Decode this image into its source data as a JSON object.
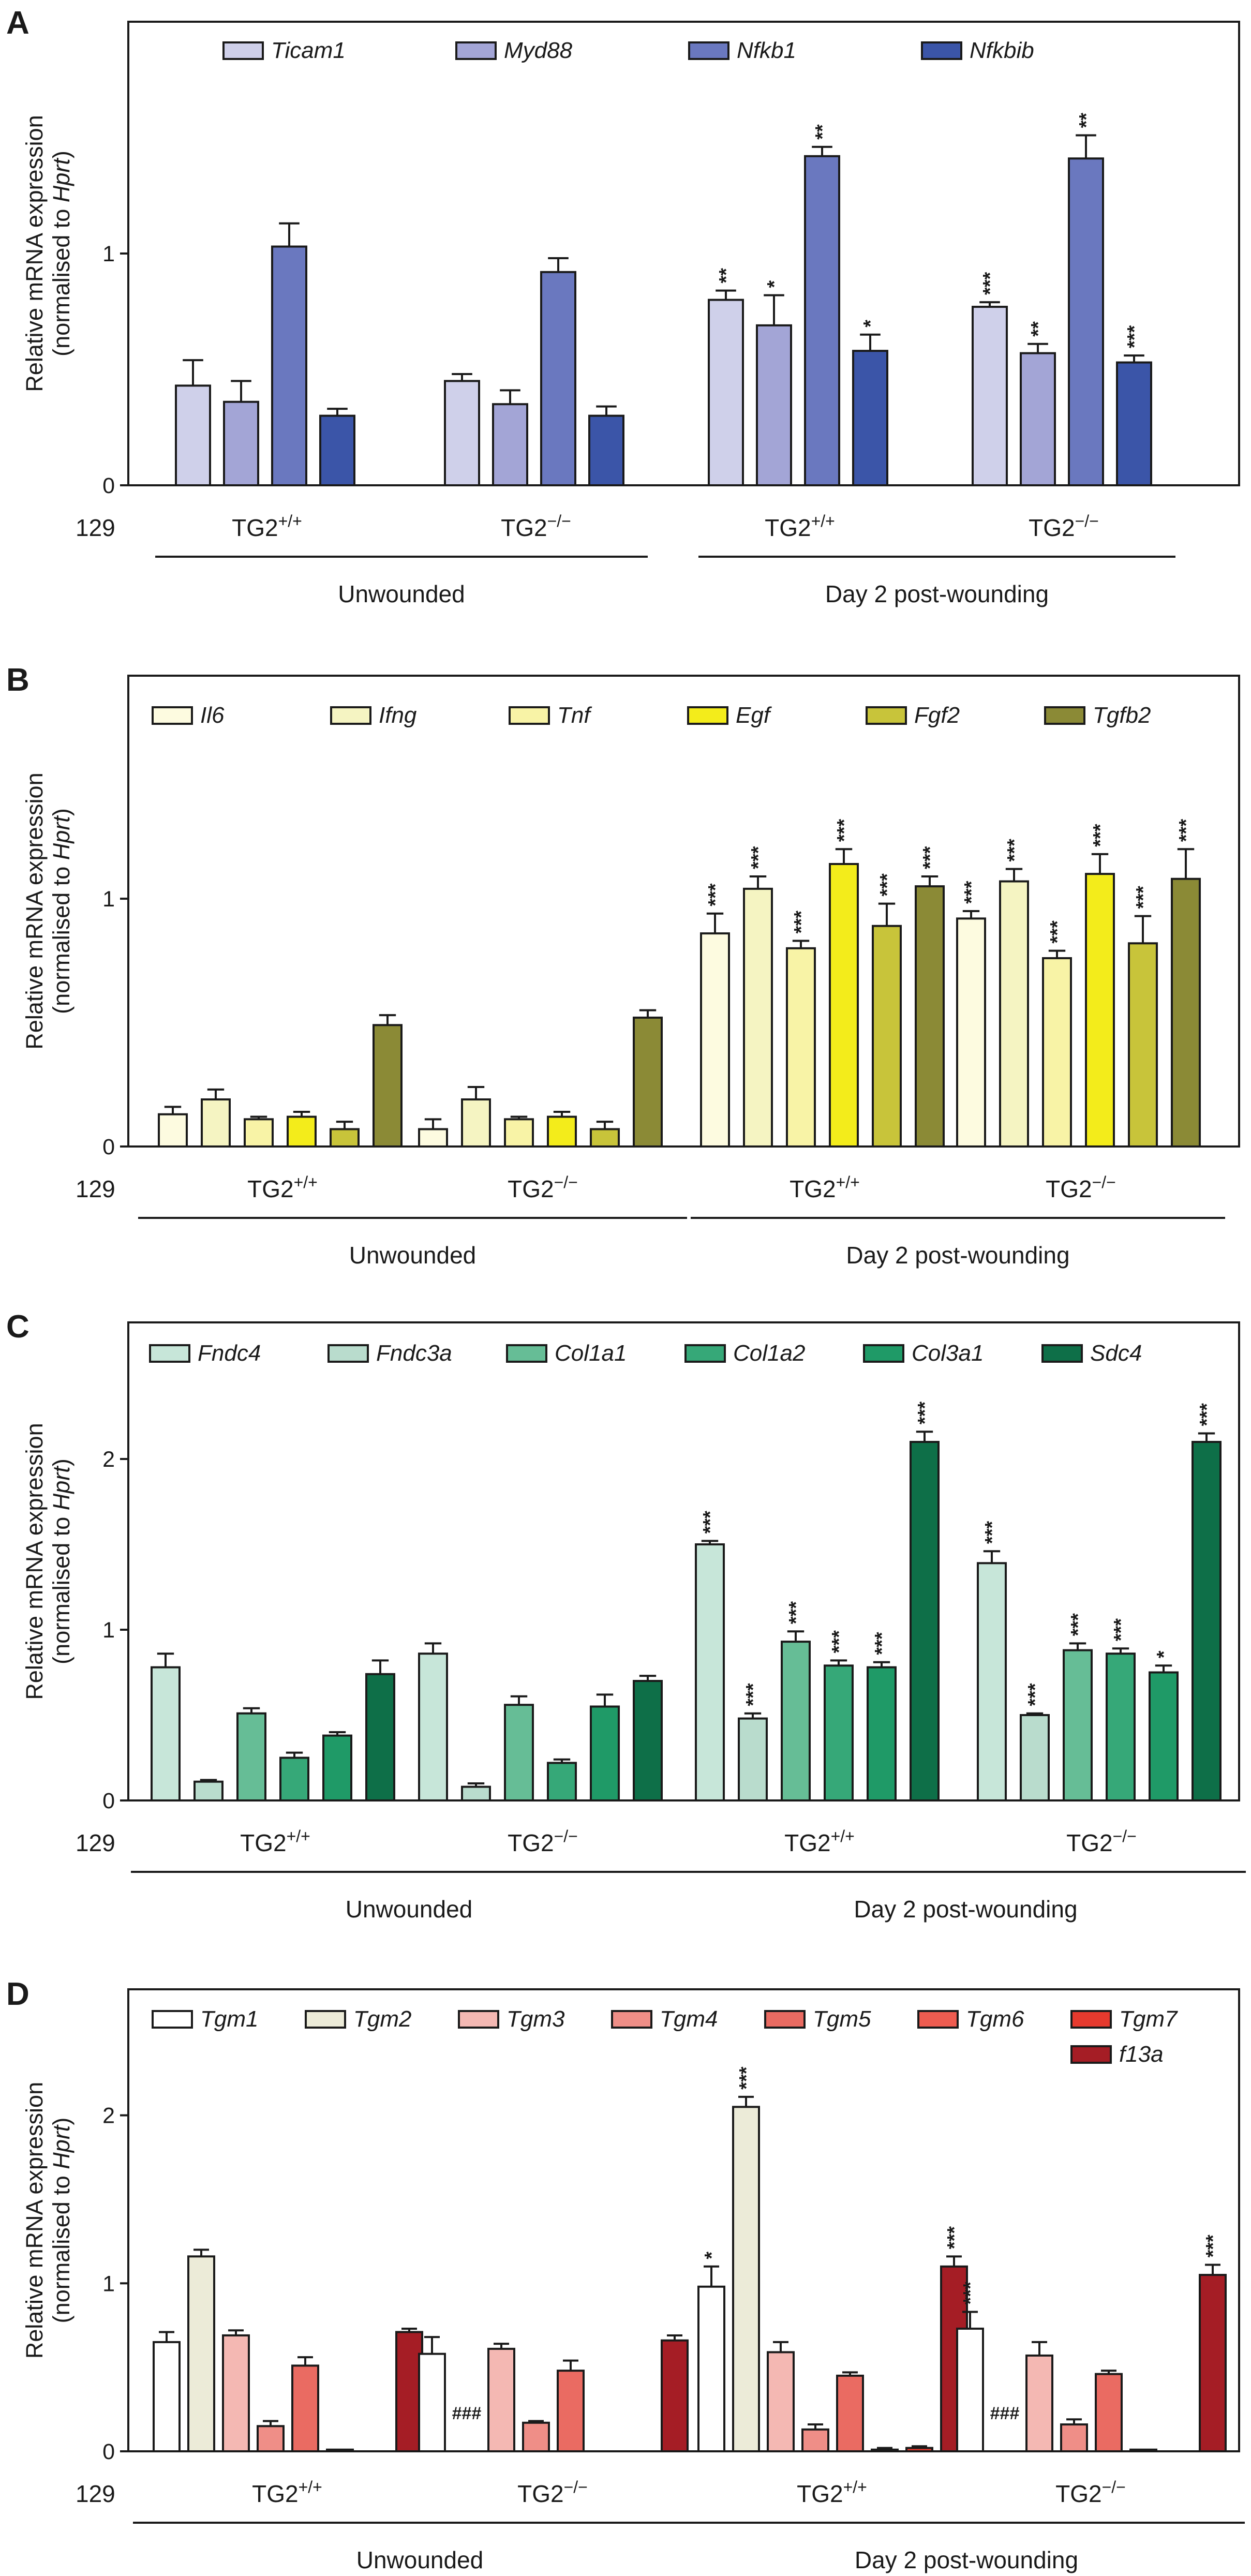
{
  "chart_data": [
    {
      "panel": "A",
      "type": "bar",
      "ylabel": "Relative mRNA expression",
      "ylabel_sub_prefix": "(normalised to ",
      "ylabel_sub_gene": "Hprt",
      "ylabel_sub_suffix": ")",
      "yticks": [
        0,
        1
      ],
      "ylim": [
        0,
        2.0
      ],
      "strain_label": "129",
      "groups": [
        "TG2+/+",
        "TG2−/−",
        "TG2+/+",
        "TG2−/−"
      ],
      "sections": [
        "Unwounded",
        "Day 2 post-wounding"
      ],
      "series": [
        {
          "name": "Ticam1",
          "color": "#cfd0ea",
          "values": [
            0.43,
            0.45,
            0.8,
            0.77
          ],
          "errors": [
            0.11,
            0.03,
            0.04,
            0.02
          ],
          "sig": [
            "",
            "",
            "**",
            "***"
          ]
        },
        {
          "name": "Myd88",
          "color": "#a3a5d6",
          "values": [
            0.36,
            0.35,
            0.69,
            0.57
          ],
          "errors": [
            0.09,
            0.06,
            0.13,
            0.04
          ],
          "sig": [
            "",
            "",
            "*",
            "**"
          ]
        },
        {
          "name": "Nfkb1",
          "color": "#6a78bf",
          "values": [
            1.03,
            0.92,
            1.42,
            1.41
          ],
          "errors": [
            0.1,
            0.06,
            0.04,
            0.1
          ],
          "sig": [
            "",
            "",
            "**",
            "**"
          ]
        },
        {
          "name": "Nfkbib",
          "color": "#3b55a8",
          "values": [
            0.3,
            0.3,
            0.58,
            0.53
          ],
          "errors": [
            0.03,
            0.04,
            0.07,
            0.03
          ],
          "sig": [
            "",
            "",
            "*",
            "***"
          ]
        }
      ],
      "hash": []
    },
    {
      "panel": "B",
      "type": "bar",
      "ylabel": "Relative mRNA expression",
      "ylabel_sub_prefix": "(normalised to ",
      "ylabel_sub_gene": "Hprt",
      "ylabel_sub_suffix": ")",
      "yticks": [
        0,
        1
      ],
      "ylim": [
        0,
        1.9
      ],
      "strain_label": "129",
      "groups": [
        "TG2+/+",
        "TG2−/−",
        "TG2+/+",
        "TG2−/−"
      ],
      "sections": [
        "Unwounded",
        "Day 2 post-wounding"
      ],
      "series": [
        {
          "name": "Il6",
          "color": "#fdfbe0",
          "values": [
            0.13,
            0.07,
            0.86,
            0.92
          ],
          "errors": [
            0.03,
            0.04,
            0.08,
            0.03
          ],
          "sig": [
            "",
            "",
            "***",
            "***"
          ]
        },
        {
          "name": "Ifng",
          "color": "#f5f4c2",
          "values": [
            0.19,
            0.19,
            1.04,
            1.07
          ],
          "errors": [
            0.04,
            0.05,
            0.05,
            0.05
          ],
          "sig": [
            "",
            "",
            "***",
            "***"
          ]
        },
        {
          "name": "Tnf",
          "color": "#f8f3a6",
          "values": [
            0.11,
            0.11,
            0.8,
            0.76
          ],
          "errors": [
            0.01,
            0.01,
            0.03,
            0.03
          ],
          "sig": [
            "",
            "",
            "***",
            "***"
          ]
        },
        {
          "name": "Egf",
          "color": "#f3ec1b",
          "values": [
            0.12,
            0.12,
            1.14,
            1.1
          ],
          "errors": [
            0.02,
            0.02,
            0.06,
            0.08
          ],
          "sig": [
            "",
            "",
            "***",
            "***"
          ]
        },
        {
          "name": "Fgf2",
          "color": "#c8c43a",
          "values": [
            0.07,
            0.07,
            0.89,
            0.82
          ],
          "errors": [
            0.03,
            0.03,
            0.09,
            0.11
          ],
          "sig": [
            "",
            "",
            "***",
            "***"
          ]
        },
        {
          "name": "Tgfb2",
          "color": "#8b8a36",
          "values": [
            0.49,
            0.52,
            1.05,
            1.08
          ],
          "errors": [
            0.04,
            0.03,
            0.04,
            0.12
          ],
          "sig": [
            "",
            "",
            "***",
            "***"
          ]
        }
      ],
      "hash": []
    },
    {
      "panel": "C",
      "type": "bar",
      "ylabel": "Relative mRNA expression",
      "ylabel_sub_prefix": "(normalised to ",
      "ylabel_sub_gene": "Hprt",
      "ylabel_sub_suffix": ")",
      "yticks": [
        0,
        1,
        2
      ],
      "ylim": [
        0,
        2.8
      ],
      "strain_label": "129",
      "groups": [
        "TG2+/+",
        "TG2−/−",
        "TG2+/+",
        "TG2−/−"
      ],
      "sections": [
        "Unwounded",
        "Day 2 post-wounding"
      ],
      "series": [
        {
          "name": "Fndc4",
          "color": "#c7e6d9",
          "values": [
            0.78,
            0.86,
            1.5,
            1.39
          ],
          "errors": [
            0.08,
            0.06,
            0.02,
            0.07
          ],
          "sig": [
            "",
            "",
            "***",
            "***"
          ]
        },
        {
          "name": "Fndc3a",
          "color": "#b9dccd",
          "values": [
            0.11,
            0.08,
            0.48,
            0.5
          ],
          "errors": [
            0.01,
            0.02,
            0.03,
            0.01
          ],
          "sig": [
            "",
            "",
            "***",
            "***"
          ]
        },
        {
          "name": "Col1a1",
          "color": "#66bd96",
          "values": [
            0.51,
            0.56,
            0.93,
            0.88
          ],
          "errors": [
            0.03,
            0.05,
            0.06,
            0.04
          ],
          "sig": [
            "",
            "",
            "***",
            "***"
          ]
        },
        {
          "name": "Col1a2",
          "color": "#36a878",
          "values": [
            0.25,
            0.22,
            0.79,
            0.86
          ],
          "errors": [
            0.03,
            0.02,
            0.03,
            0.03
          ],
          "sig": [
            "",
            "",
            "***",
            "***"
          ]
        },
        {
          "name": "Col3a1",
          "color": "#1f9a67",
          "values": [
            0.38,
            0.55,
            0.78,
            0.75
          ],
          "errors": [
            0.02,
            0.07,
            0.03,
            0.04
          ],
          "sig": [
            "",
            "",
            "***",
            "*"
          ]
        },
        {
          "name": "Sdc4",
          "color": "#0e6f48",
          "values": [
            0.74,
            0.7,
            2.1,
            2.1
          ],
          "errors": [
            0.08,
            0.03,
            0.06,
            0.05
          ],
          "sig": [
            "",
            "",
            "***",
            "***"
          ]
        }
      ],
      "hash": []
    },
    {
      "panel": "D",
      "type": "bar",
      "ylabel": "Relative mRNA expression",
      "ylabel_sub_prefix": "(normalised to ",
      "ylabel_sub_gene": "Hprt",
      "ylabel_sub_suffix": ")",
      "yticks": [
        0,
        1,
        2
      ],
      "ylim": [
        0,
        2.75
      ],
      "strain_label": "129",
      "groups": [
        "TG2+/+",
        "TG2−/−",
        "TG2+/+",
        "TG2−/−"
      ],
      "sections": [
        "Unwounded",
        "Day 2 post-wounding"
      ],
      "series": [
        {
          "name": "Tgm1",
          "color": "#ffffff",
          "values": [
            0.65,
            0.58,
            0.98,
            0.73
          ],
          "errors": [
            0.06,
            0.1,
            0.12,
            0.1
          ],
          "sig": [
            "",
            "",
            "*",
            "***"
          ]
        },
        {
          "name": "Tgm2",
          "color": "#ecebd8",
          "values": [
            1.16,
            0,
            2.05,
            0
          ],
          "errors": [
            0.04,
            0,
            0.06,
            0
          ],
          "sig": [
            "",
            "",
            "***",
            ""
          ]
        },
        {
          "name": "Tgm3",
          "color": "#f4b8b3",
          "values": [
            0.69,
            0.61,
            0.59,
            0.57
          ],
          "errors": [
            0.03,
            0.03,
            0.06,
            0.08
          ],
          "sig": [
            "",
            "",
            "",
            ""
          ]
        },
        {
          "name": "Tgm4",
          "color": "#ef8e87",
          "values": [
            0.15,
            0.17,
            0.13,
            0.16
          ],
          "errors": [
            0.03,
            0.01,
            0.03,
            0.03
          ],
          "sig": [
            "",
            "",
            "",
            ""
          ]
        },
        {
          "name": "Tgm5",
          "color": "#ea6b62",
          "values": [
            0.51,
            0.48,
            0.45,
            0.46
          ],
          "errors": [
            0.05,
            0.06,
            0.02,
            0.02
          ],
          "sig": [
            "",
            "",
            "",
            ""
          ]
        },
        {
          "name": "Tgm6",
          "color": "#ee5c50",
          "values": [
            0.01,
            0,
            0.01,
            0.01
          ],
          "errors": [
            0,
            0,
            0.01,
            0
          ],
          "sig": [
            "",
            "",
            "",
            ""
          ]
        },
        {
          "name": "Tgm7",
          "color": "#e63a2e",
          "values": [
            0,
            0,
            0.02,
            0
          ],
          "errors": [
            0,
            0,
            0.01,
            0
          ],
          "sig": [
            "",
            "",
            "",
            ""
          ]
        },
        {
          "name": "f13a",
          "color": "#a51d25",
          "values": [
            0.71,
            0.66,
            1.1,
            1.05
          ],
          "errors": [
            0.02,
            0.03,
            0.06,
            0.06
          ],
          "sig": [
            "",
            "",
            "***",
            "***"
          ]
        }
      ],
      "hash": [
        {
          "series": 1,
          "group": 1,
          "text": "###"
        },
        {
          "series": 1,
          "group": 3,
          "text": "###"
        }
      ]
    }
  ]
}
